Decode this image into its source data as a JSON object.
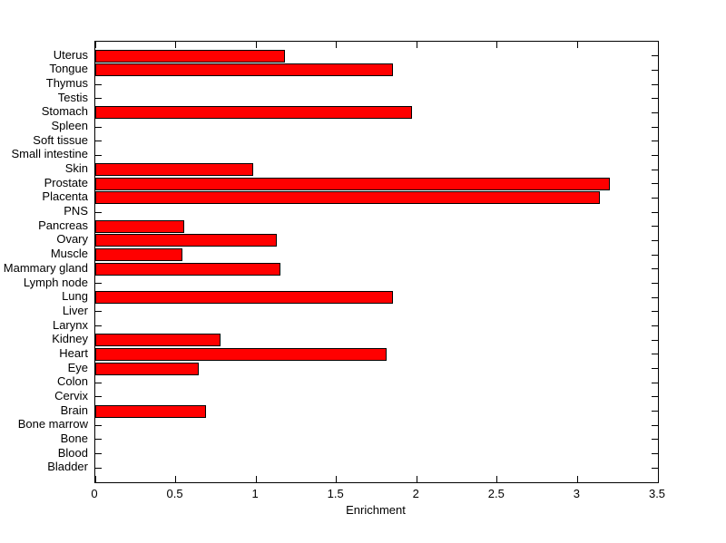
{
  "figure": {
    "background": "#ffffff",
    "plot_background": "#ffffff",
    "axis_color": "#000000",
    "text_color": "#000000"
  },
  "chart_data": {
    "type": "bar",
    "orientation": "horizontal",
    "title": "",
    "xlabel": "Enrichment",
    "ylabel": "",
    "xlim": [
      0,
      3.5
    ],
    "x_ticks": [
      0,
      0.5,
      1,
      1.5,
      2,
      2.5,
      3,
      3.5
    ],
    "x_tick_labels": [
      "0",
      "0.5",
      "1",
      "1.5",
      "2",
      "2.5",
      "3",
      "3.5"
    ],
    "grid": false,
    "legend": "none",
    "bar_color": "#ff0000",
    "bar_edge_color": "#000000",
    "categories": [
      "Uterus",
      "Tongue",
      "Thymus",
      "Testis",
      "Stomach",
      "Spleen",
      "Soft tissue",
      "Small intestine",
      "Skin",
      "Prostate",
      "Placenta",
      "PNS",
      "Pancreas",
      "Ovary",
      "Muscle",
      "Mammary gland",
      "Lymph node",
      "Lung",
      "Liver",
      "Larynx",
      "Kidney",
      "Heart",
      "Eye",
      "Colon",
      "Cervix",
      "Brain",
      "Bone marrow",
      "Bone",
      "Blood",
      "Bladder"
    ],
    "values": [
      1.17,
      1.84,
      0,
      0,
      1.96,
      0,
      0,
      0,
      0.97,
      3.19,
      3.13,
      0,
      0.54,
      1.12,
      0.53,
      1.14,
      0,
      1.84,
      0,
      0,
      0.77,
      1.8,
      0.63,
      0,
      0,
      0.68,
      0,
      0,
      0,
      0
    ]
  }
}
